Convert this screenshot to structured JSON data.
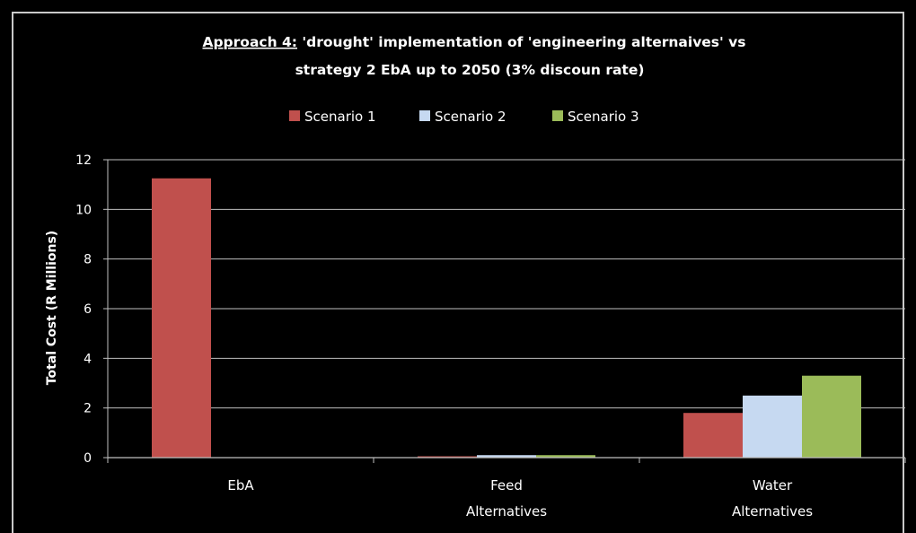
{
  "chart_data": {
    "type": "bar",
    "title_prefix": "Approach 4:",
    "title_rest": " 'drought' implementation of 'engineering alternaives' vs",
    "title_line2": "strategy 2 EbA up to 2050 (3% discoun rate)",
    "ylabel": "Total Cost (R Millions)",
    "xlabel": "",
    "ylim": [
      0,
      12
    ],
    "yticks": [
      "0",
      "2",
      "4",
      "6",
      "8",
      "10",
      "12"
    ],
    "grid": true,
    "legend_position": "top",
    "categories": [
      [
        "EbA"
      ],
      [
        "Feed",
        "Alternatives"
      ],
      [
        "Water",
        "Alternatives"
      ]
    ],
    "series": [
      {
        "name": "Scenario 1",
        "color": "#c0504d",
        "values": [
          11.25,
          0.03,
          1.8
        ]
      },
      {
        "name": "Scenario 2",
        "color": "#c6d9f1",
        "values": [
          0,
          0.1,
          2.5
        ]
      },
      {
        "name": "Scenario 3",
        "color": "#9bbb59",
        "values": [
          0,
          0.1,
          3.3
        ]
      }
    ],
    "colors": {
      "background": "#000000",
      "text": "#ffffff",
      "grid": "#bfbfbf",
      "frame": "#c9c9c9"
    }
  }
}
